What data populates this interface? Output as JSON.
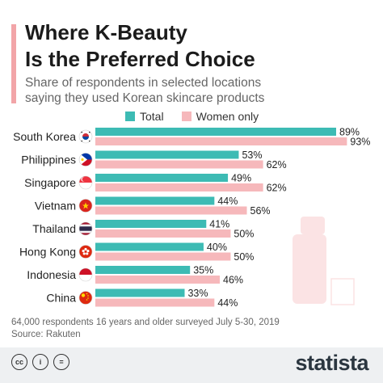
{
  "header": {
    "title_line1": "Where K-Beauty",
    "title_line2": "Is the Preferred Choice",
    "subtitle_line1": "Share of respondents in selected locations",
    "subtitle_line2": "saying they used Korean skincare products"
  },
  "colors": {
    "accent": "#f2a5a8",
    "total": "#3dbbb4",
    "women": "#f6b8bb",
    "decor": "#fbe3e4"
  },
  "chart_data": {
    "type": "bar",
    "orientation": "horizontal",
    "categories": [
      "South Korea",
      "Philippines",
      "Singapore",
      "Vietnam",
      "Thailand",
      "Hong Kong",
      "Indonesia",
      "China"
    ],
    "flags": [
      "south-korea-flag-icon",
      "philippines-flag-icon",
      "singapore-flag-icon",
      "vietnam-flag-icon",
      "thailand-flag-icon",
      "hong-kong-flag-icon",
      "indonesia-flag-icon",
      "china-flag-icon"
    ],
    "series": [
      {
        "name": "Total",
        "values": [
          89,
          53,
          49,
          44,
          41,
          40,
          35,
          33
        ]
      },
      {
        "name": "Women only",
        "values": [
          93,
          62,
          62,
          56,
          50,
          50,
          46,
          44
        ]
      }
    ],
    "unit": "%",
    "xlim": [
      0,
      100
    ],
    "legend_position": "top",
    "grid": false
  },
  "footer": {
    "note": "64,000 respondents 16 years and older surveyed July 5-30, 2019",
    "source": "Source: Rakuten",
    "brand": "statista",
    "license_icons": [
      "cc",
      "i",
      "="
    ]
  }
}
